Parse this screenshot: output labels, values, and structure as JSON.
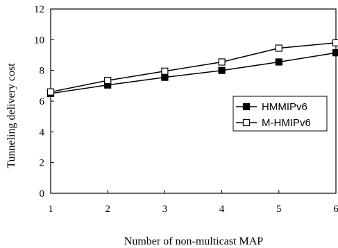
{
  "chart_data": {
    "type": "line",
    "title": "",
    "xlabel": "Number of non-multicast MAP",
    "ylabel": "Tunneling delivery cost",
    "x": [
      1,
      2,
      3,
      4,
      5,
      6
    ],
    "xlim": [
      1,
      6
    ],
    "ylim": [
      0,
      12
    ],
    "x_ticks": [
      "1",
      "2",
      "3",
      "4",
      "5",
      "6"
    ],
    "y_ticks": [
      "0",
      "2",
      "4",
      "6",
      "8",
      "10",
      "12"
    ],
    "grid": false,
    "legend_position": "right",
    "series": [
      {
        "name": "HMMIPv6",
        "values": [
          6.5,
          7.05,
          7.55,
          8.0,
          8.55,
          9.15
        ],
        "marker": "filled-square",
        "color": "#000000"
      },
      {
        "name": "M-HMIPv6",
        "values": [
          6.6,
          7.35,
          7.95,
          8.55,
          9.45,
          9.8
        ],
        "marker": "open-square",
        "color": "#000000"
      }
    ]
  }
}
